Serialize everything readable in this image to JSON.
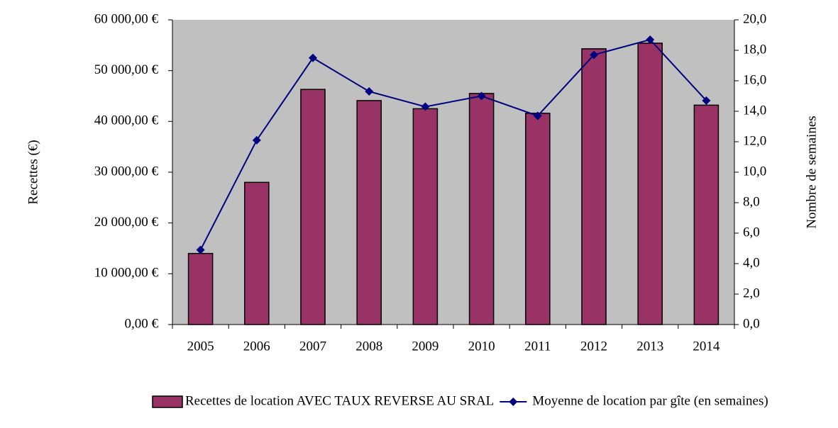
{
  "chart_data": {
    "type": "bar-line",
    "y_label": "Recettes (€)",
    "y2_label": "Nombre de semaines",
    "categories": [
      "2005",
      "2006",
      "2007",
      "2008",
      "2009",
      "2010",
      "2011",
      "2012",
      "2013",
      "2014"
    ],
    "series": [
      {
        "name": "Recettes de location AVEC TAUX REVERSE AU SRAL",
        "type": "bar",
        "color": "#993366",
        "values": [
          14000,
          28000,
          46300,
          44100,
          42500,
          45500,
          41600,
          54300,
          55400,
          43200
        ]
      },
      {
        "name": "Moyenne de location par gîte (en semaines)",
        "type": "line",
        "axis": "y2",
        "color": "#000080",
        "values": [
          4.9,
          12.1,
          17.5,
          15.3,
          14.3,
          15.0,
          13.7,
          17.7,
          18.7,
          14.7
        ]
      }
    ],
    "ylim": [
      0,
      60000
    ],
    "yticks": [
      {
        "value": 0,
        "label": "0,00 €"
      },
      {
        "value": 10000,
        "label": "10 000,00 €"
      },
      {
        "value": 20000,
        "label": "20 000,00 €"
      },
      {
        "value": 30000,
        "label": "30 000,00 €"
      },
      {
        "value": 40000,
        "label": "40 000,00 €"
      },
      {
        "value": 50000,
        "label": "50 000,00 €"
      },
      {
        "value": 60000,
        "label": "60 000,00 €"
      }
    ],
    "y2lim": [
      0,
      20
    ],
    "y2ticks": [
      {
        "value": 0,
        "label": "0,0"
      },
      {
        "value": 2,
        "label": "2,0"
      },
      {
        "value": 4,
        "label": "4,0"
      },
      {
        "value": 6,
        "label": "6,0"
      },
      {
        "value": 8,
        "label": "8,0"
      },
      {
        "value": 10,
        "label": "10,0"
      },
      {
        "value": 12,
        "label": "12,0"
      },
      {
        "value": 14,
        "label": "14,0"
      },
      {
        "value": 16,
        "label": "16,0"
      },
      {
        "value": 18,
        "label": "18,0"
      },
      {
        "value": 20,
        "label": "20,0"
      }
    ],
    "plot_background": "#c0c0c0"
  }
}
